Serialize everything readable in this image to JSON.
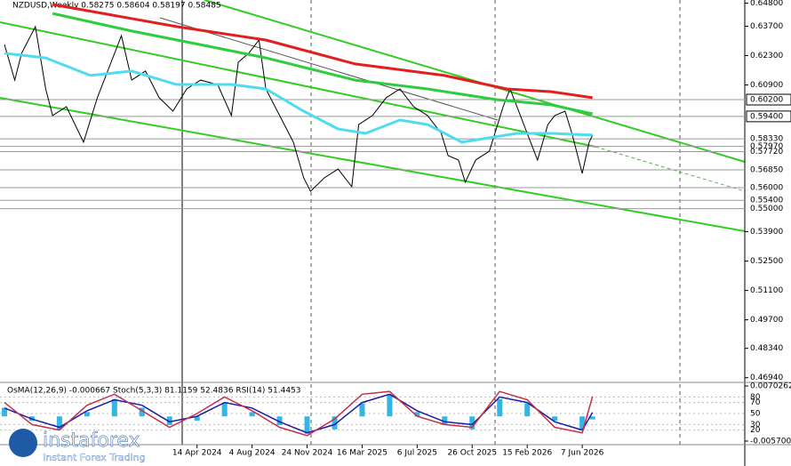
{
  "chart_data": [
    {
      "type": "line",
      "title": "NZDUSD,Weekly  0.58275 0.58604 0.58197 0.58485",
      "xlim": [
        0,
        215
      ],
      "ylim": [
        0.468,
        0.6495
      ],
      "xticks": [
        {
          "value": 56,
          "label": "14 Apr 2024"
        },
        {
          "value": 72,
          "label": "4 Aug 2024"
        },
        {
          "value": 88,
          "label": "24 Nov 2024"
        },
        {
          "value": 104,
          "label": "16 Mar 2025"
        },
        {
          "value": 120,
          "label": "6 Jul 2025"
        },
        {
          "value": 136,
          "label": "26 Oct 2025"
        },
        {
          "value": 152,
          "label": "15 Feb 2026"
        },
        {
          "value": 168,
          "label": "7 Jun 2026"
        }
      ],
      "yticks": [
        {
          "value": 0.648,
          "label": "0.64800"
        },
        {
          "value": 0.637,
          "label": "0.63700"
        },
        {
          "value": 0.623,
          "label": "0.62300"
        },
        {
          "value": 0.609,
          "label": "0.60900"
        },
        {
          "value": 0.539,
          "label": "0.53900"
        },
        {
          "value": 0.525,
          "label": "0.52500"
        },
        {
          "value": 0.511,
          "label": "0.51100"
        },
        {
          "value": 0.497,
          "label": "0.49700"
        },
        {
          "value": 0.4834,
          "label": "0.48340"
        },
        {
          "value": 0.4694,
          "label": "0.46940"
        }
      ],
      "levels": [
        {
          "value": 0.602,
          "label": "0.60200",
          "highlight": true
        },
        {
          "value": 0.594,
          "label": "0.59400",
          "highlight": true
        },
        {
          "value": 0.5833,
          "label": "0.58330",
          "highlight": false
        },
        {
          "value": 0.5797,
          "label": "0.57970",
          "highlight": false
        },
        {
          "value": 0.5772,
          "label": "0.57720",
          "highlight": false
        },
        {
          "value": 0.5685,
          "label": "0.56850",
          "highlight": false
        },
        {
          "value": 0.56,
          "label": "0.56000",
          "highlight": false
        },
        {
          "value": 0.554,
          "label": "0.55400",
          "highlight": false
        },
        {
          "value": 0.55,
          "label": "0.55000",
          "highlight": false
        }
      ],
      "series": [
        {
          "color": "#000000",
          "width": 1,
          "x": [
            0,
            3,
            5,
            9,
            12,
            14,
            18,
            23,
            27,
            31,
            34,
            37,
            41,
            45,
            49,
            53,
            57,
            62,
            66,
            68,
            71,
            74,
            76,
            80,
            84,
            87,
            89,
            93,
            97,
            101,
            103,
            107,
            111,
            115,
            119,
            123,
            127,
            129,
            132,
            134,
            137,
            141,
            145,
            147,
            150,
            152,
            155,
            158,
            160,
            163,
            165,
            168,
            170,
            171
          ],
          "values": [
            0.6283,
            0.6113,
            0.6241,
            0.6368,
            0.6071,
            0.5944,
            0.5986,
            0.5817,
            0.6029,
            0.6198,
            0.6325,
            0.6113,
            0.6156,
            0.6029,
            0.5965,
            0.6071,
            0.6113,
            0.6092,
            0.5944,
            0.6198,
            0.6241,
            0.6304,
            0.6071,
            0.5944,
            0.5817,
            0.5647,
            0.5583,
            0.5647,
            0.5689,
            0.5605,
            0.5901,
            0.5944,
            0.6029,
            0.6071,
            0.5986,
            0.5944,
            0.5859,
            0.5753,
            0.5732,
            0.5626,
            0.5732,
            0.5774,
            0.5986,
            0.6071,
            0.5944,
            0.5859,
            0.5732,
            0.5901,
            0.5944,
            0.5965,
            0.5859,
            0.5668,
            0.5817,
            0.5851
          ]
        },
        {
          "color": "#e0201e",
          "width": 3,
          "x": [
            14,
            50,
            76,
            102,
            128,
            146,
            159,
            171
          ],
          "values": [
            0.6474,
            0.6368,
            0.6304,
            0.619,
            0.6135,
            0.6071,
            0.6058,
            0.6029
          ]
        },
        {
          "color": "#2ecc40",
          "width": 3,
          "x": [
            14,
            37,
            63,
            76,
            102,
            123,
            143,
            159,
            171
          ],
          "values": [
            0.6431,
            0.6347,
            0.6262,
            0.6219,
            0.6113,
            0.6071,
            0.602,
            0.5995,
            0.5952
          ]
        },
        {
          "color": "#4fdcf0",
          "width": 3,
          "x": [
            0,
            12,
            25,
            37,
            50,
            66,
            76,
            87,
            97,
            105,
            115,
            123,
            133,
            141,
            149,
            159,
            171
          ],
          "values": [
            0.6241,
            0.6219,
            0.6135,
            0.6156,
            0.6092,
            0.6092,
            0.6071,
            0.5965,
            0.588,
            0.5859,
            0.5923,
            0.5901,
            0.5817,
            0.5838,
            0.5859,
            0.5859,
            0.5851
          ]
        }
      ]
    },
    {
      "type": "oscillator",
      "title": "OsMA(12,26,9) -0.000667  Stoch(5,3,3) 81.1159 52.4836  RSI(14) 51.4453",
      "xlim": [
        0,
        215
      ],
      "ylim": [
        -0.0057,
        0.0070262
      ],
      "yticks": [
        {
          "value": 0.0070262,
          "label": "0.0070262"
        },
        {
          "value": -0.0057,
          "label": "-0.0057000"
        }
      ],
      "y2lim": [
        0,
        100
      ],
      "y2ticks": [
        80,
        70,
        50,
        30,
        20
      ],
      "x": [
        0,
        8,
        16,
        24,
        32,
        40,
        48,
        56,
        64,
        72,
        80,
        88,
        96,
        104,
        112,
        120,
        128,
        136,
        144,
        152,
        160,
        168,
        171
      ],
      "osma": {
        "color": "#33b5e5",
        "values": [
          0.002,
          -0.001,
          -0.003,
          0.001,
          0.004,
          0.002,
          -0.002,
          -0.001,
          0.003,
          0.001,
          -0.002,
          -0.004,
          -0.003,
          0.003,
          0.005,
          0.001,
          -0.002,
          -0.003,
          0.004,
          0.003,
          -0.001,
          -0.003,
          -0.0007
        ]
      },
      "series": [
        {
          "color": "#1a1aa8",
          "values": [
            60,
            40,
            25,
            55,
            75,
            65,
            35,
            45,
            70,
            60,
            35,
            15,
            30,
            70,
            85,
            55,
            35,
            30,
            80,
            70,
            35,
            20,
            52
          ]
        },
        {
          "color": "#c0304a",
          "values": [
            70,
            30,
            20,
            65,
            85,
            55,
            25,
            50,
            80,
            55,
            25,
            10,
            40,
            85,
            90,
            45,
            30,
            25,
            90,
            75,
            25,
            15,
            81
          ]
        }
      ]
    }
  ]
}
